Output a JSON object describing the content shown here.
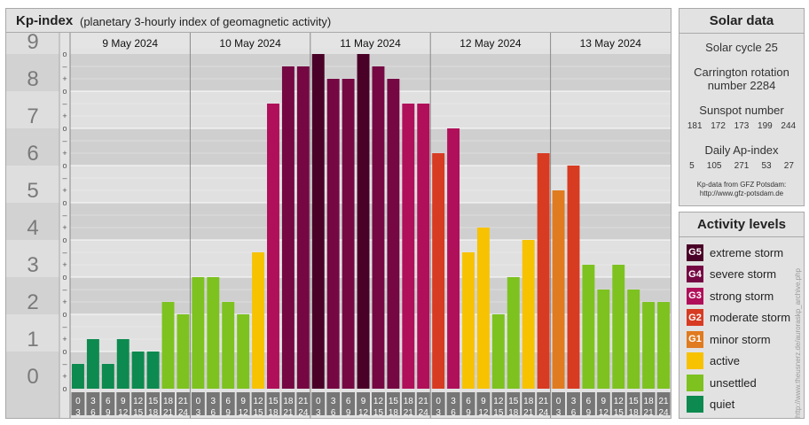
{
  "header": {
    "title": "Kp-index",
    "subtitle": "(planetary 3-hourly index of geomagnetic activity)"
  },
  "chart_data": {
    "type": "bar",
    "ylim": [
      0,
      9
    ],
    "y_tick_labels": [
      "0",
      "1",
      "2",
      "3",
      "4",
      "5",
      "6",
      "7",
      "8",
      "9"
    ],
    "y_minor_labels": [
      "o",
      "+",
      "–"
    ],
    "days": [
      "9 May 2024",
      "10 May 2024",
      "11 May 2024",
      "12 May 2024",
      "13 May 2024"
    ],
    "interval_start_labels": [
      "0",
      "3",
      "6",
      "9",
      "12",
      "15",
      "18",
      "21"
    ],
    "interval_end_labels": [
      "3",
      "6",
      "9",
      "12",
      "15",
      "18",
      "21",
      "24"
    ],
    "values": [
      0.667,
      1.333,
      0.667,
      1.333,
      1.0,
      1.0,
      2.333,
      2.0,
      3.0,
      3.0,
      2.333,
      2.0,
      3.667,
      7.667,
      8.667,
      8.667,
      9.0,
      8.333,
      8.333,
      9.0,
      8.667,
      8.333,
      7.667,
      7.667,
      6.333,
      7.0,
      3.667,
      4.333,
      2.0,
      3.0,
      4.0,
      6.333,
      5.333,
      6.0,
      3.333,
      2.667,
      3.333,
      2.667,
      2.333,
      2.333
    ],
    "level_colors": {
      "quiet": "#0d8a4f",
      "unsettled": "#7dc21f",
      "active": "#f7c200",
      "G1": "#e07b20",
      "G2": "#d73b22",
      "G3": "#b0105a",
      "G4": "#750843",
      "G5": "#4a0127"
    }
  },
  "solar_data": {
    "heading": "Solar data",
    "solar_cycle": "Solar cycle 25",
    "carrington_1": "Carrington rotation",
    "carrington_2": "number 2284",
    "sunspot_label": "Sunspot number",
    "sunspot_values": [
      "181",
      "172",
      "173",
      "199",
      "244"
    ],
    "ap_label": "Daily Ap-index",
    "ap_values": [
      "5",
      "105",
      "271",
      "53",
      "27"
    ],
    "credit_1": "Kp-data from GFZ Potsdam:",
    "credit_2": "http://www.gfz-potsdam.de"
  },
  "activity_levels": {
    "heading": "Activity levels",
    "items": [
      {
        "badge": "G5",
        "label": "extreme storm",
        "color": "#4a0127"
      },
      {
        "badge": "G4",
        "label": "severe storm",
        "color": "#750843"
      },
      {
        "badge": "G3",
        "label": "strong storm",
        "color": "#b0105a"
      },
      {
        "badge": "G2",
        "label": "moderate storm",
        "color": "#d73b22"
      },
      {
        "badge": "G1",
        "label": "minor storm",
        "color": "#e07b20"
      },
      {
        "badge": "",
        "label": "active",
        "color": "#f7c200"
      },
      {
        "badge": "",
        "label": "unsettled",
        "color": "#7dc21f"
      },
      {
        "badge": "",
        "label": "quiet",
        "color": "#0d8a4f"
      }
    ]
  },
  "watermark": "http://www.theusnerz.de/auroraskp_archive.php"
}
